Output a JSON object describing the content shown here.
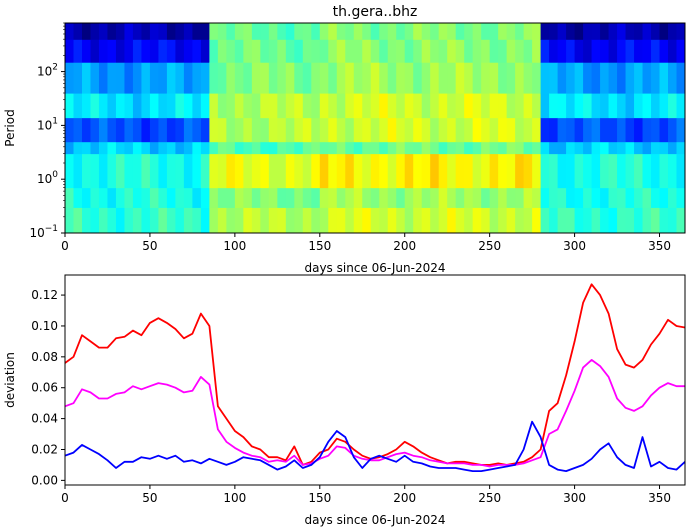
{
  "chart_data": [
    {
      "type": "heatmap",
      "title": "th.gera..bhz",
      "xlabel": "days since 06-Jun-2024",
      "ylabel": "Period",
      "xlim": [
        0,
        365
      ],
      "ylim": [
        0.1,
        800
      ],
      "yscale": "log",
      "xticks": [
        0,
        50,
        100,
        150,
        200,
        250,
        300,
        350
      ],
      "yticks": [
        {
          "value": 0.1,
          "label": "10",
          "exp": "−1"
        },
        {
          "value": 1,
          "label": "10",
          "exp": "0"
        },
        {
          "value": 10,
          "label": "10",
          "exp": "1"
        },
        {
          "value": 100,
          "label": "10",
          "exp": "2"
        }
      ],
      "colormap": "jet",
      "x_segments": [
        {
          "from": 0,
          "to": 85,
          "regime": "high-noise"
        },
        {
          "from": 85,
          "to": 150,
          "regime": "quiet"
        },
        {
          "from": 150,
          "to": 280,
          "regime": "very-quiet"
        },
        {
          "from": 280,
          "to": 365,
          "regime": "high-noise"
        }
      ],
      "period_bands": [
        {
          "from": 0.1,
          "to": 0.3,
          "level_noisy": 0.42,
          "level_quiet": 0.55
        },
        {
          "from": 0.3,
          "to": 0.7,
          "level_noisy": 0.4,
          "level_quiet": 0.5
        },
        {
          "from": 0.7,
          "to": 3,
          "level_noisy": 0.4,
          "level_quiet": 0.6
        },
        {
          "from": 3,
          "to": 5,
          "level_noisy": 0.33,
          "level_quiet": 0.45
        },
        {
          "from": 5,
          "to": 14,
          "level_noisy": 0.2,
          "level_quiet": 0.55
        },
        {
          "from": 14,
          "to": 40,
          "level_noisy": 0.35,
          "level_quiet": 0.55
        },
        {
          "from": 40,
          "to": 150,
          "level_noisy": 0.28,
          "level_quiet": 0.5
        },
        {
          "from": 150,
          "to": 400,
          "level_noisy": 0.12,
          "level_quiet": 0.48
        },
        {
          "from": 400,
          "to": 800,
          "level_noisy": 0.05,
          "level_quiet": 0.47
        }
      ],
      "colors": {
        "low": "#0000ff",
        "mid": "#3cf3b7",
        "high": "#ffea00"
      }
    },
    {
      "type": "line",
      "xlabel": "days since 06-Jun-2024",
      "ylabel": "deviation",
      "xlim": [
        0,
        365
      ],
      "ylim": [
        -0.003,
        0.133
      ],
      "xticks": [
        0,
        50,
        100,
        150,
        200,
        250,
        300,
        350
      ],
      "yticks": [
        0.0,
        0.02,
        0.04,
        0.06,
        0.08,
        0.1,
        0.12
      ],
      "ytick_labels": [
        "0.00",
        "0.02",
        "0.04",
        "0.06",
        "0.08",
        "0.10",
        "0.12"
      ],
      "x": [
        0,
        5,
        10,
        15,
        20,
        25,
        30,
        35,
        40,
        45,
        50,
        55,
        60,
        65,
        70,
        75,
        80,
        85,
        90,
        95,
        100,
        105,
        110,
        115,
        120,
        125,
        130,
        135,
        140,
        145,
        150,
        155,
        160,
        165,
        170,
        175,
        180,
        185,
        190,
        195,
        200,
        205,
        210,
        215,
        220,
        225,
        230,
        235,
        240,
        245,
        250,
        255,
        260,
        265,
        270,
        275,
        280,
        285,
        290,
        295,
        300,
        305,
        310,
        315,
        320,
        325,
        330,
        335,
        340,
        345,
        350,
        355,
        360,
        365
      ],
      "series": [
        {
          "color": "#ff0000",
          "values": [
            0.076,
            0.08,
            0.094,
            0.09,
            0.086,
            0.086,
            0.092,
            0.093,
            0.097,
            0.094,
            0.102,
            0.105,
            0.102,
            0.098,
            0.092,
            0.095,
            0.108,
            0.1,
            0.048,
            0.04,
            0.032,
            0.028,
            0.022,
            0.02,
            0.015,
            0.015,
            0.013,
            0.022,
            0.01,
            0.012,
            0.018,
            0.02,
            0.027,
            0.025,
            0.02,
            0.016,
            0.014,
            0.015,
            0.017,
            0.02,
            0.025,
            0.022,
            0.018,
            0.015,
            0.013,
            0.011,
            0.012,
            0.012,
            0.011,
            0.01,
            0.01,
            0.011,
            0.01,
            0.011,
            0.012,
            0.015,
            0.02,
            0.045,
            0.05,
            0.068,
            0.09,
            0.115,
            0.127,
            0.12,
            0.108,
            0.085,
            0.075,
            0.073,
            0.078,
            0.088,
            0.095,
            0.104,
            0.1,
            0.099
          ]
        },
        {
          "color": "#ff00ff",
          "values": [
            0.048,
            0.05,
            0.059,
            0.057,
            0.053,
            0.053,
            0.056,
            0.057,
            0.061,
            0.059,
            0.061,
            0.063,
            0.062,
            0.06,
            0.057,
            0.058,
            0.067,
            0.062,
            0.033,
            0.025,
            0.021,
            0.018,
            0.016,
            0.015,
            0.012,
            0.013,
            0.012,
            0.016,
            0.01,
            0.011,
            0.014,
            0.016,
            0.022,
            0.021,
            0.016,
            0.014,
            0.013,
            0.013,
            0.015,
            0.017,
            0.018,
            0.016,
            0.015,
            0.013,
            0.012,
            0.011,
            0.011,
            0.011,
            0.01,
            0.01,
            0.009,
            0.01,
            0.01,
            0.01,
            0.011,
            0.013,
            0.015,
            0.03,
            0.033,
            0.045,
            0.058,
            0.073,
            0.078,
            0.074,
            0.067,
            0.053,
            0.047,
            0.045,
            0.048,
            0.055,
            0.06,
            0.063,
            0.061,
            0.061
          ]
        },
        {
          "color": "#0000ff",
          "values": [
            0.016,
            0.018,
            0.023,
            0.02,
            0.017,
            0.013,
            0.008,
            0.012,
            0.012,
            0.015,
            0.014,
            0.016,
            0.014,
            0.016,
            0.012,
            0.013,
            0.011,
            0.014,
            0.012,
            0.01,
            0.012,
            0.015,
            0.014,
            0.013,
            0.01,
            0.007,
            0.009,
            0.013,
            0.008,
            0.01,
            0.015,
            0.025,
            0.032,
            0.028,
            0.015,
            0.008,
            0.014,
            0.016,
            0.014,
            0.012,
            0.016,
            0.012,
            0.011,
            0.009,
            0.008,
            0.008,
            0.008,
            0.007,
            0.006,
            0.006,
            0.007,
            0.008,
            0.009,
            0.01,
            0.02,
            0.038,
            0.028,
            0.01,
            0.007,
            0.006,
            0.008,
            0.01,
            0.014,
            0.02,
            0.024,
            0.015,
            0.01,
            0.008,
            0.028,
            0.009,
            0.012,
            0.008,
            0.007,
            0.012
          ]
        }
      ]
    }
  ]
}
